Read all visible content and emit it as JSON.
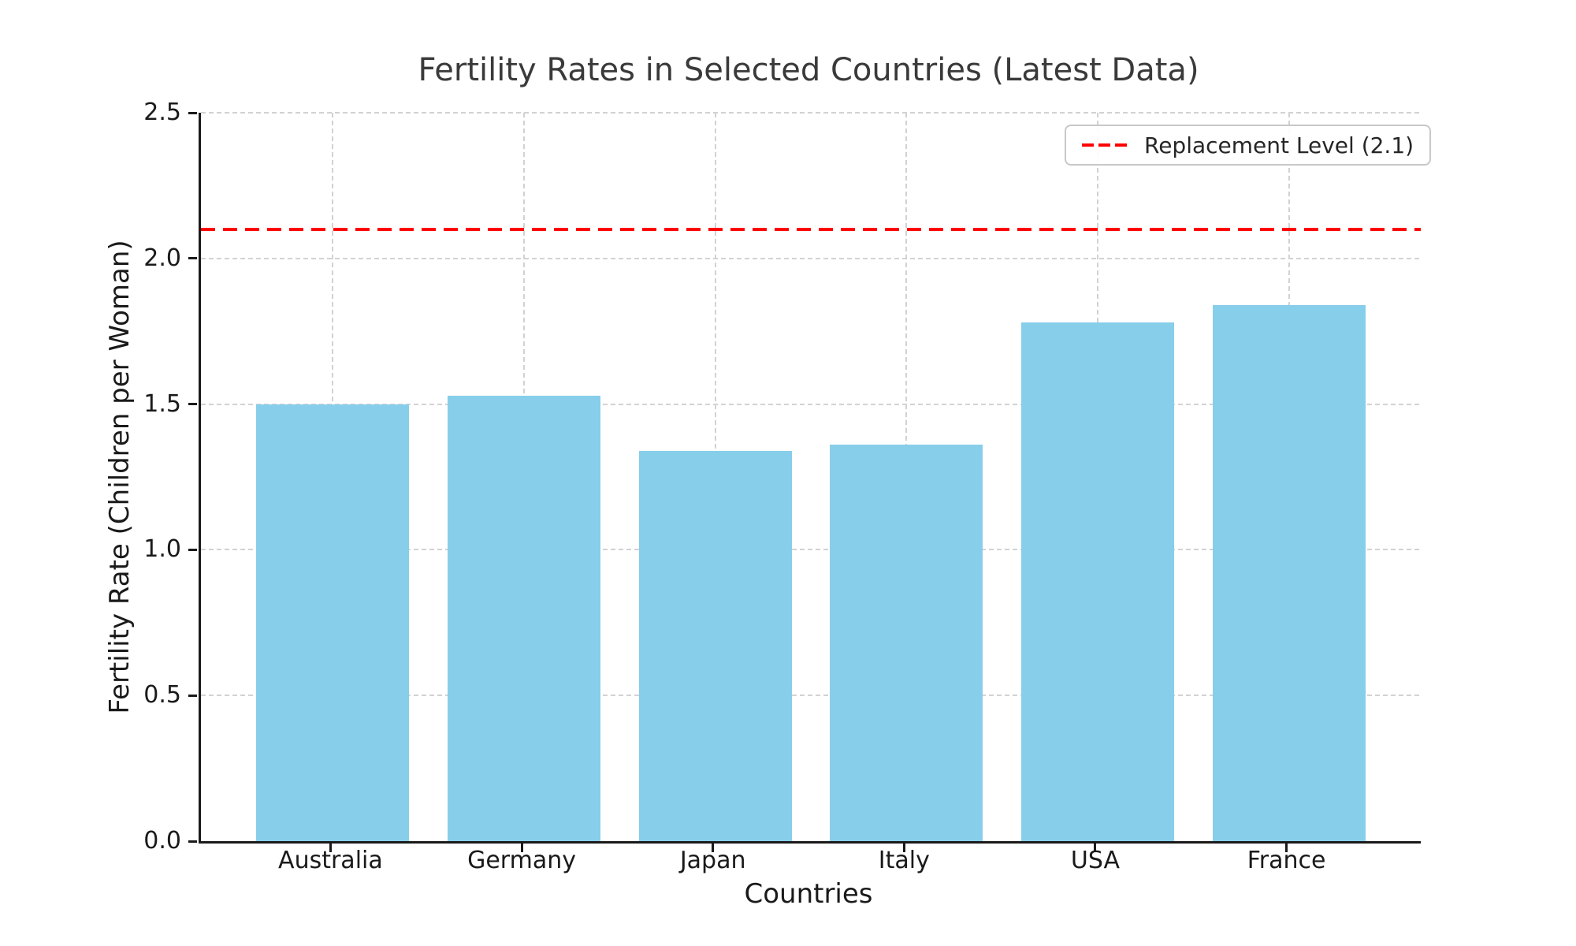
{
  "chart_data": {
    "type": "bar",
    "title": "Fertility Rates in Selected Countries (Latest Data)",
    "xlabel": "Countries",
    "ylabel": "Fertility Rate (Children per Woman)",
    "categories": [
      "Australia",
      "Germany",
      "Japan",
      "Italy",
      "USA",
      "France"
    ],
    "values": [
      1.5,
      1.53,
      1.34,
      1.36,
      1.78,
      1.84
    ],
    "ylim": [
      0.0,
      2.5
    ],
    "yticks": [
      0.0,
      0.5,
      1.0,
      1.5,
      2.0,
      2.5
    ],
    "ytick_labels": [
      "0.0",
      "0.5",
      "1.0",
      "1.5",
      "2.0",
      "2.5"
    ],
    "grid": true,
    "grid_style": "dashed",
    "legend_position": "upper right",
    "bar_color": "#87CEEB",
    "reference_line": {
      "value": 2.1,
      "label": "Replacement Level (2.1)",
      "color": "#FF0000",
      "style": "dashed"
    },
    "style": {
      "grid_color": "#d2d2d2",
      "axis_color": "#1a1a1a",
      "title_color": "#3a3a3a",
      "background": "#ffffff"
    }
  }
}
